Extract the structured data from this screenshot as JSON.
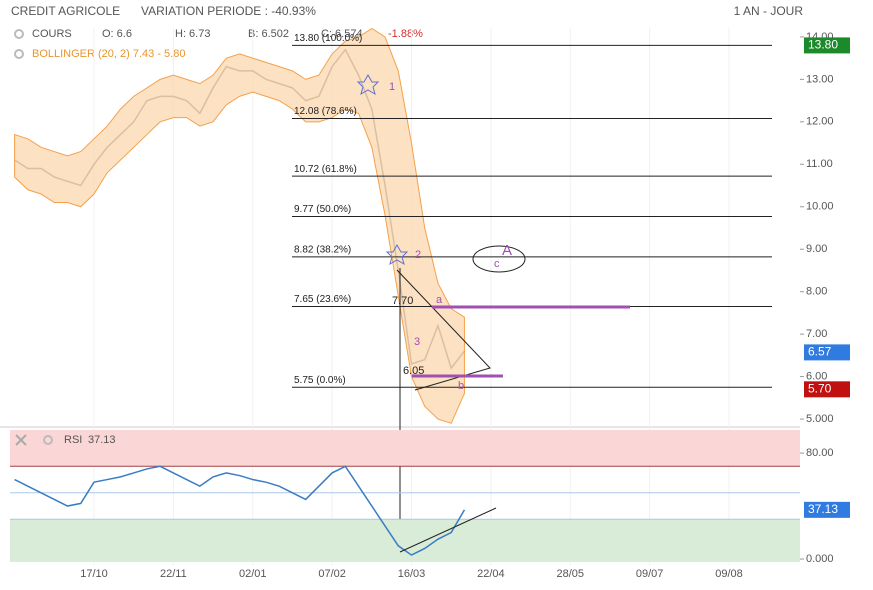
{
  "header": {
    "title": "CREDIT AGRICOLE",
    "variation": "VARIATION PERIODE : -40.93%",
    "period": "1 AN - JOUR"
  },
  "chart_data": [
    {
      "type": "line",
      "legend": {
        "cours": "COURS",
        "ohlc": [
          "O: 6.6",
          "H: 6.73",
          "B: 6.502",
          "C: 6.574"
        ],
        "change": "-1.88%",
        "bollinger": "BOLLINGER (20, 2) 7.43 - 5.80"
      },
      "categories": [
        null,
        null,
        null,
        null,
        null,
        null,
        "17/10",
        null,
        null,
        null,
        null,
        null,
        "22/11",
        null,
        null,
        null,
        null,
        null,
        "02/01",
        null,
        null,
        null,
        null,
        null,
        "07/02",
        null,
        null,
        null,
        null,
        null,
        "16/03",
        null,
        null,
        null,
        null,
        null,
        "22/04",
        null,
        null,
        null,
        null,
        null,
        "28/05",
        null,
        null,
        null,
        null,
        null,
        "09/07",
        null,
        null,
        null,
        null,
        null,
        "09/08",
        null,
        null,
        null,
        null,
        null
      ],
      "series": [
        {
          "name": "COURS",
          "color": "#555555",
          "values": [
            11.1,
            10.9,
            10.9,
            10.7,
            10.6,
            10.5,
            11.0,
            11.4,
            11.7,
            12.0,
            12.5,
            12.6,
            12.6,
            12.5,
            12.2,
            12.8,
            13.3,
            13.2,
            13.2,
            13.0,
            12.9,
            12.8,
            12.5,
            12.6,
            13.3,
            13.7,
            13.1,
            12.3,
            10.5,
            8.5,
            6.3,
            6.4,
            7.2,
            6.2,
            6.6,
            null,
            null,
            null,
            null,
            null,
            null,
            null,
            null,
            null,
            null,
            null,
            null,
            null,
            null,
            null,
            null,
            null,
            null,
            null,
            null,
            null,
            null,
            null,
            null,
            null
          ]
        },
        {
          "name": "BOLLINGER",
          "color": "#f5a04a",
          "upper": [
            11.7,
            11.6,
            11.4,
            11.3,
            11.2,
            11.3,
            11.6,
            11.9,
            12.3,
            12.6,
            12.8,
            13.0,
            13.1,
            13.0,
            12.9,
            13.1,
            13.5,
            13.6,
            13.5,
            13.4,
            13.3,
            13.2,
            13.0,
            13.1,
            13.6,
            13.9,
            14.0,
            14.2,
            14.0,
            13.2,
            11.5,
            9.5,
            8.2,
            7.6,
            7.4,
            null,
            null,
            null,
            null,
            null,
            null,
            null,
            null,
            null,
            null,
            null,
            null,
            null,
            null,
            null,
            null,
            null,
            null,
            null,
            null,
            null,
            null,
            null,
            null,
            null
          ],
          "lower": [
            10.7,
            10.4,
            10.3,
            10.1,
            10.1,
            10.0,
            10.3,
            10.8,
            11.1,
            11.4,
            11.7,
            12.0,
            12.1,
            12.1,
            11.9,
            12.0,
            12.4,
            12.6,
            12.7,
            12.6,
            12.5,
            12.3,
            12.0,
            12.0,
            12.1,
            12.3,
            12.2,
            11.4,
            9.8,
            7.9,
            6.0,
            5.3,
            5.0,
            4.9,
            5.6,
            null,
            null,
            null,
            null,
            null,
            null,
            null,
            null,
            null,
            null,
            null,
            null,
            null,
            null,
            null,
            null,
            null,
            null,
            null,
            null,
            null,
            null,
            null,
            null,
            null
          ]
        }
      ],
      "ylim": [
        4.86,
        14.21
      ],
      "yticks": [
        {
          "value": 14,
          "label": "14.00"
        },
        {
          "value": 13,
          "label": "13.00"
        },
        {
          "value": 12,
          "label": "12.00"
        },
        {
          "value": 11,
          "label": "11.00"
        },
        {
          "value": 10,
          "label": "10.00"
        },
        {
          "value": 9,
          "label": "9.00"
        },
        {
          "value": 8,
          "label": "8.00"
        },
        {
          "value": 7,
          "label": "7.00"
        },
        {
          "value": 6,
          "label": "6.00"
        },
        {
          "value": 5,
          "label": "5.000"
        }
      ],
      "fibonacci": [
        {
          "value": 13.8,
          "label": "13.80  (100.0%)"
        },
        {
          "value": 12.08,
          "label": "12.08  (78.6%)"
        },
        {
          "value": 10.72,
          "label": "10.72  (61.8%)"
        },
        {
          "value": 9.77,
          "label": "9.77  (50.0%)"
        },
        {
          "value": 8.82,
          "label": "8.82  (38.2%)"
        },
        {
          "value": 7.65,
          "label": "7.65  (23.6%)"
        },
        {
          "value": 5.75,
          "label": "5.75  (0.0%)"
        }
      ],
      "price_markers": [
        {
          "value": 13.8,
          "label": "13.80",
          "color": "#1a8a2a"
        },
        {
          "value": 6.57,
          "label": "6.57",
          "color": "#2f7be0"
        },
        {
          "value": 5.7,
          "label": "5.70",
          "color": "#c01010"
        }
      ],
      "annotations": [
        "1",
        "2",
        "3",
        "A",
        "c",
        "a",
        "b",
        "7.70",
        "6.05"
      ]
    },
    {
      "type": "line",
      "title": "RSI",
      "series": [
        {
          "name": "RSI",
          "color": "#3a7cc4",
          "values": [
            60,
            55,
            50,
            45,
            40,
            42,
            58,
            60,
            62,
            65,
            68,
            70,
            65,
            60,
            55,
            62,
            65,
            63,
            60,
            58,
            55,
            50,
            45,
            55,
            65,
            70,
            55,
            40,
            25,
            10,
            3,
            8,
            15,
            20,
            37.13,
            null,
            null,
            null,
            null,
            null,
            null,
            null,
            null,
            null,
            null,
            null,
            null,
            null,
            null,
            null,
            null,
            null,
            null,
            null,
            null,
            null,
            null,
            null,
            null,
            null
          ]
        }
      ],
      "last_label": {
        "value": 37.13,
        "label": "37.13"
      },
      "ylim": [
        -4.5,
        97.4
      ],
      "yticks": [
        {
          "value": 80,
          "label": "80.00"
        },
        {
          "value": 0,
          "label": "0.000"
        }
      ],
      "overbought": 70,
      "oversold": 30,
      "midline": 50
    }
  ]
}
